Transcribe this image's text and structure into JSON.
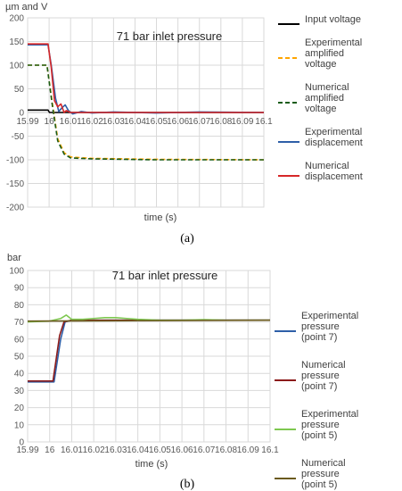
{
  "chart_data": [
    {
      "type": "line",
      "panel_label": "(a)",
      "title": "71 bar inlet pressure",
      "xlabel": "time (s)",
      "ylabel": "µm and V",
      "xlim": [
        15.99,
        16.1
      ],
      "ylim": [
        -200,
        200
      ],
      "x_ticks": [
        "15.99",
        "16",
        "16.01",
        "16.02",
        "16.03",
        "16.04",
        "16.05",
        "16.06",
        "16.07",
        "16.08",
        "16.09",
        "16.1"
      ],
      "y_ticks": [
        "200",
        "150",
        "100",
        "50",
        "0",
        "-50",
        "-100",
        "-150",
        "-200"
      ],
      "grid": true,
      "legend_position": "right",
      "series": [
        {
          "name": "Input voltage",
          "color": "#000000",
          "dash": "solid",
          "points": [
            [
              15.99,
              5
            ],
            [
              15.9985,
              5
            ],
            [
              15.9995,
              5
            ],
            [
              16.0002,
              0
            ],
            [
              16.1,
              0
            ]
          ]
        },
        {
          "name": "Experimental amplified voltage",
          "color": "#ffa500",
          "dash": "dashed",
          "points": [
            [
              15.99,
              100
            ],
            [
              15.999,
              100
            ],
            [
              16.0015,
              20
            ],
            [
              16.004,
              -55
            ],
            [
              16.007,
              -85
            ],
            [
              16.01,
              -94
            ],
            [
              16.02,
              -97
            ],
            [
              16.05,
              -99
            ],
            [
              16.1,
              -100
            ]
          ]
        },
        {
          "name": "Numerical amplified voltage",
          "color": "#1a5c1a",
          "dash": "dashed",
          "points": [
            [
              15.99,
              100
            ],
            [
              15.999,
              100
            ],
            [
              16.0015,
              15
            ],
            [
              16.004,
              -60
            ],
            [
              16.007,
              -88
            ],
            [
              16.01,
              -96
            ],
            [
              16.02,
              -98
            ],
            [
              16.05,
              -100
            ],
            [
              16.1,
              -100
            ]
          ]
        },
        {
          "name": "Experimental displacement",
          "color": "#2e5fa8",
          "dash": "solid",
          "points": [
            [
              15.99,
              143
            ],
            [
              15.9995,
              143
            ],
            [
              16.001,
              100
            ],
            [
              16.003,
              30
            ],
            [
              16.0045,
              2
            ],
            [
              16.006,
              10
            ],
            [
              16.0075,
              16
            ],
            [
              16.009,
              4
            ],
            [
              16.011,
              -3
            ],
            [
              16.015,
              2
            ],
            [
              16.02,
              -1
            ],
            [
              16.03,
              1
            ],
            [
              16.05,
              -1
            ],
            [
              16.07,
              1
            ],
            [
              16.1,
              0
            ]
          ]
        },
        {
          "name": "Numerical displacement",
          "color": "#d62728",
          "dash": "solid",
          "points": [
            [
              15.99,
              145
            ],
            [
              15.9995,
              145
            ],
            [
              16.001,
              95
            ],
            [
              16.0025,
              25
            ],
            [
              16.004,
              12
            ],
            [
              16.0055,
              18
            ],
            [
              16.007,
              0
            ],
            [
              16.008,
              4
            ],
            [
              16.01,
              0
            ],
            [
              16.1,
              0
            ]
          ]
        }
      ]
    },
    {
      "type": "line",
      "panel_label": "(b)",
      "title": "71 bar inlet pressure",
      "xlabel": "time (s)",
      "ylabel": "bar",
      "xlim": [
        15.99,
        16.1
      ],
      "ylim": [
        0,
        100
      ],
      "x_ticks": [
        "15.99",
        "16",
        "16.01",
        "16.02",
        "16.03",
        "16.04",
        "16.05",
        "16.06",
        "16.07",
        "16.08",
        "16.09",
        "16.1"
      ],
      "y_ticks": [
        "100",
        "90",
        "80",
        "70",
        "60",
        "50",
        "40",
        "30",
        "20",
        "10",
        "0"
      ],
      "grid": true,
      "legend_position": "right",
      "series": [
        {
          "name": "Experimental pressure (point 7)",
          "color": "#2e5fa8",
          "dash": "solid",
          "points": [
            [
              15.99,
              35
            ],
            [
              16.002,
              35
            ],
            [
              16.005,
              60
            ],
            [
              16.007,
              70
            ],
            [
              16.01,
              71
            ],
            [
              16.1,
              71
            ]
          ]
        },
        {
          "name": "Numerical pressure (point 7)",
          "color": "#8b1a1a",
          "dash": "solid",
          "points": [
            [
              15.99,
              35.5
            ],
            [
              16.0015,
              35.5
            ],
            [
              16.0045,
              62
            ],
            [
              16.0065,
              70
            ],
            [
              16.01,
              71
            ],
            [
              16.1,
              71
            ]
          ]
        },
        {
          "name": "Experimental pressure (point 5)",
          "color": "#7ec850",
          "dash": "solid",
          "points": [
            [
              15.99,
              70
            ],
            [
              16.0,
              70.5
            ],
            [
              16.005,
              72
            ],
            [
              16.0075,
              74
            ],
            [
              16.01,
              71.5
            ],
            [
              16.015,
              71.5
            ],
            [
              16.02,
              72
            ],
            [
              16.025,
              72.5
            ],
            [
              16.03,
              72.5
            ],
            [
              16.035,
              72
            ],
            [
              16.04,
              71.5
            ],
            [
              16.05,
              71
            ],
            [
              16.06,
              71
            ],
            [
              16.07,
              71.3
            ],
            [
              16.08,
              71
            ],
            [
              16.09,
              71
            ],
            [
              16.1,
              71
            ]
          ]
        },
        {
          "name": "Numerical pressure (point 5)",
          "color": "#6b5a1e",
          "dash": "solid",
          "points": [
            [
              15.99,
              70.5
            ],
            [
              16.1,
              71
            ]
          ]
        }
      ]
    }
  ]
}
